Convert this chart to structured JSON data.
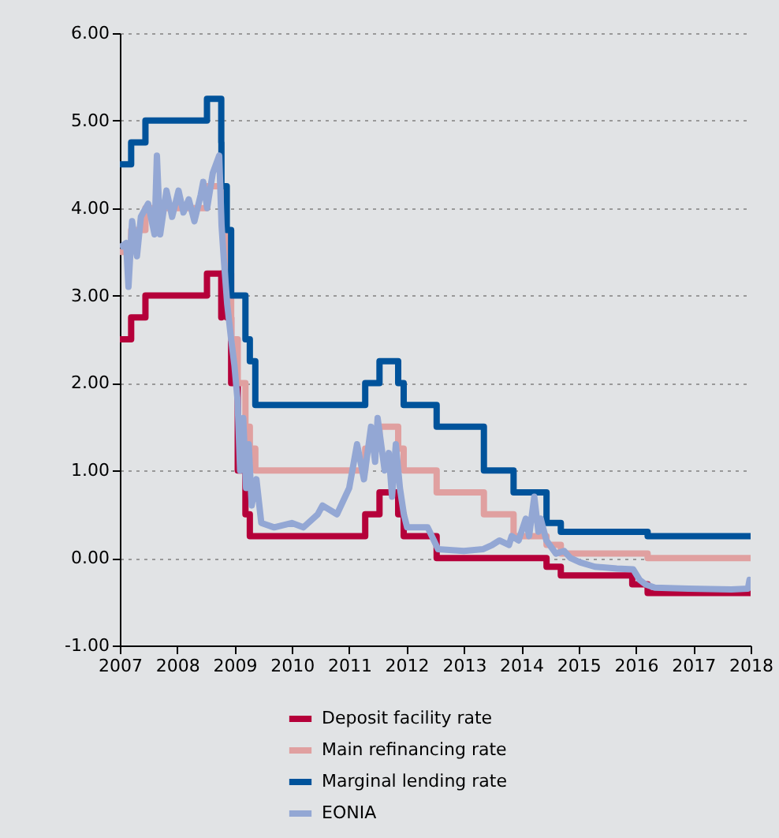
{
  "chart_data": {
    "type": "step",
    "xlim": [
      "2007-01-01",
      "2018-01-01"
    ],
    "xticks": [
      "2007",
      "2008",
      "2009",
      "2010",
      "2011",
      "2012",
      "2013",
      "2014",
      "2015",
      "2016",
      "2017",
      "2018"
    ],
    "ylim": [
      -1,
      6
    ],
    "yticks": [
      {
        "value": -1,
        "label": "-1.00"
      },
      {
        "value": 0,
        "label": "0.00"
      },
      {
        "value": 1,
        "label": "1.00"
      },
      {
        "value": 2,
        "label": "2.00"
      },
      {
        "value": 3,
        "label": "3.00"
      },
      {
        "value": 4,
        "label": "4.00"
      },
      {
        "value": 5,
        "label": "5.00"
      },
      {
        "value": 6,
        "label": "6.00"
      }
    ],
    "grid": "y",
    "legend": "bottom",
    "marker": "none",
    "line_style": "solid",
    "series": [
      {
        "name": "Deposit facility rate",
        "color": "#b5003a",
        "x": [
          "2007-01-01",
          "2007-03-14",
          "2007-06-13",
          "2008-07-09",
          "2008-10-08",
          "2008-10-09",
          "2008-11-12",
          "2008-12-10",
          "2009-01-21",
          "2009-03-11",
          "2009-04-08",
          "2011-04-13",
          "2011-07-13",
          "2011-11-09",
          "2011-12-14",
          "2012-07-11",
          "2014-06-11",
          "2014-09-10",
          "2015-12-09",
          "2016-03-16",
          "2018-01-01"
        ],
        "values": [
          2.5,
          2.75,
          3.0,
          3.25,
          2.75,
          3.25,
          2.75,
          2.0,
          1.0,
          0.5,
          0.25,
          0.5,
          0.75,
          0.5,
          0.25,
          0.0,
          -0.1,
          -0.2,
          -0.3,
          -0.4,
          -0.4
        ]
      },
      {
        "name": "Main refinancing rate",
        "color": "#e0a0a0",
        "x": [
          "2007-01-01",
          "2007-03-14",
          "2007-06-13",
          "2008-07-09",
          "2008-10-15",
          "2008-11-12",
          "2008-12-10",
          "2009-01-21",
          "2009-03-11",
          "2009-04-08",
          "2009-05-13",
          "2011-04-13",
          "2011-07-13",
          "2011-11-09",
          "2011-12-14",
          "2012-07-11",
          "2013-05-08",
          "2013-11-13",
          "2014-06-11",
          "2014-09-10",
          "2016-03-16",
          "2018-01-01"
        ],
        "values": [
          3.5,
          3.75,
          4.0,
          4.25,
          3.75,
          3.25,
          2.5,
          2.0,
          1.5,
          1.25,
          1.0,
          1.25,
          1.5,
          1.25,
          1.0,
          0.75,
          0.5,
          0.25,
          0.15,
          0.05,
          0.0,
          0.0
        ]
      },
      {
        "name": "Marginal lending rate",
        "color": "#00539b",
        "x": [
          "2007-01-01",
          "2007-03-14",
          "2007-06-13",
          "2008-07-09",
          "2008-10-08",
          "2008-10-09",
          "2008-11-12",
          "2008-12-10",
          "2009-01-21",
          "2009-03-11",
          "2009-04-08",
          "2009-05-13",
          "2011-04-13",
          "2011-07-13",
          "2011-11-09",
          "2011-12-14",
          "2012-07-11",
          "2013-05-08",
          "2013-11-13",
          "2014-06-11",
          "2014-09-10",
          "2016-03-16",
          "2018-01-01"
        ],
        "values": [
          4.5,
          4.75,
          5.0,
          5.25,
          4.75,
          4.25,
          3.75,
          3.0,
          3.0,
          2.5,
          2.25,
          1.75,
          2.0,
          2.25,
          2.0,
          1.75,
          1.5,
          1.0,
          0.75,
          0.4,
          0.3,
          0.25,
          0.25
        ]
      },
      {
        "name": "EONIA",
        "type": "line",
        "color": "#93a7d4",
        "x": [
          "2007-01-01",
          "2007-02-10",
          "2007-02-25",
          "2007-03-20",
          "2007-04-20",
          "2007-05-15",
          "2007-06-30",
          "2007-08-10",
          "2007-08-25",
          "2007-09-15",
          "2007-10-25",
          "2007-11-30",
          "2008-01-10",
          "2008-02-10",
          "2008-03-15",
          "2008-04-20",
          "2008-05-30",
          "2008-06-15",
          "2008-07-10",
          "2008-08-15",
          "2008-09-25",
          "2008-10-10",
          "2008-10-25",
          "2008-11-15",
          "2008-12-10",
          "2008-12-31",
          "2009-01-20",
          "2009-02-05",
          "2009-02-25",
          "2009-03-15",
          "2009-04-01",
          "2009-04-20",
          "2009-05-20",
          "2009-06-20",
          "2009-09-10",
          "2009-12-31",
          "2010-03-15",
          "2010-06-15",
          "2010-07-15",
          "2010-10-15",
          "2011-01-01",
          "2011-02-20",
          "2011-04-05",
          "2011-05-20",
          "2011-06-15",
          "2011-07-01",
          "2011-08-15",
          "2011-09-10",
          "2011-10-01",
          "2011-10-25",
          "2011-11-20",
          "2011-12-15",
          "2012-01-05",
          "2012-05-15",
          "2012-07-20",
          "2012-12-31",
          "2013-05-01",
          "2013-07-01",
          "2013-08-15",
          "2013-10-15",
          "2013-11-01",
          "2013-12-15",
          "2014-01-30",
          "2014-02-20",
          "2014-03-25",
          "2014-04-20",
          "2014-05-05",
          "2014-06-10",
          "2014-08-10",
          "2014-10-01",
          "2014-11-10",
          "2015-01-10",
          "2015-04-15",
          "2015-09-01",
          "2015-12-15",
          "2016-01-25",
          "2016-03-01",
          "2016-05-01",
          "2016-12-01",
          "2017-09-01",
          "2017-12-15",
          "2017-12-25",
          "2018-01-01"
        ],
        "values": [
          3.55,
          3.6,
          3.1,
          3.85,
          3.45,
          3.9,
          4.05,
          3.7,
          4.6,
          3.7,
          4.2,
          3.9,
          4.2,
          3.95,
          4.1,
          3.85,
          4.15,
          4.3,
          4.0,
          4.4,
          4.6,
          3.8,
          3.4,
          2.9,
          2.5,
          2.2,
          1.8,
          1.0,
          1.6,
          0.8,
          1.3,
          0.6,
          0.9,
          0.4,
          0.35,
          0.4,
          0.35,
          0.5,
          0.6,
          0.5,
          0.8,
          1.3,
          0.9,
          1.5,
          1.1,
          1.6,
          1.0,
          1.2,
          0.7,
          1.3,
          0.8,
          0.5,
          0.35,
          0.35,
          0.1,
          0.08,
          0.1,
          0.15,
          0.2,
          0.15,
          0.25,
          0.2,
          0.45,
          0.25,
          0.7,
          0.3,
          0.45,
          0.2,
          0.05,
          0.08,
          0.0,
          -0.05,
          -0.1,
          -0.12,
          -0.13,
          -0.25,
          -0.3,
          -0.34,
          -0.35,
          -0.36,
          -0.35,
          -0.25,
          -0.35
        ]
      }
    ]
  }
}
